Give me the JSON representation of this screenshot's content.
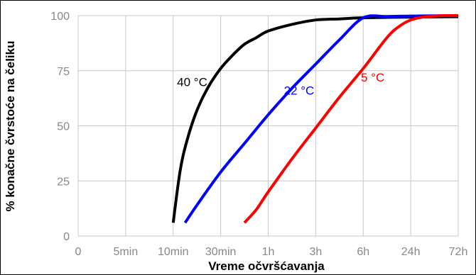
{
  "chart_data": {
    "type": "line",
    "title": "",
    "xlabel": "Vreme očvršćavanja",
    "ylabel": "% konačne čvrstoće na čeliku",
    "x_categories": [
      "0",
      "5min",
      "10min",
      "30min",
      "1h",
      "3h",
      "6h",
      "24h",
      "72h"
    ],
    "y_ticks": [
      0,
      25,
      50,
      75,
      100
    ],
    "ylim": [
      0,
      100
    ],
    "grid": true,
    "series": [
      {
        "name": "40 °C",
        "color": "#000000",
        "x": [
          2,
          2.15,
          2.3,
          2.5,
          2.75,
          3.0,
          3.25,
          3.5,
          3.75,
          4.0,
          4.5,
          5.0,
          5.5,
          6.0,
          7.0,
          8.0
        ],
        "y": [
          6,
          30,
          44,
          57,
          68,
          76,
          82,
          87,
          90,
          93,
          96,
          98,
          98.5,
          99,
          99.3,
          99.5
        ]
      },
      {
        "name": "22 °C",
        "color": "#0000ff",
        "x": [
          2.25,
          2.5,
          3.0,
          3.5,
          4.0,
          4.5,
          5.0,
          5.5,
          6.0,
          6.5,
          7.0,
          8.0
        ],
        "y": [
          6,
          14,
          29,
          42,
          55,
          67,
          78,
          89,
          99,
          99.6,
          99.8,
          100
        ]
      },
      {
        "name": "5 °C",
        "color": "#ff0000",
        "x": [
          3.5,
          3.75,
          4.0,
          4.5,
          5.0,
          5.5,
          6.0,
          6.5,
          6.75,
          7.0,
          7.25,
          7.5,
          7.75,
          8.0
        ],
        "y": [
          6,
          12,
          20,
          35,
          49,
          63,
          76,
          90,
          95,
          98,
          99.3,
          99.8,
          100,
          100
        ]
      }
    ],
    "annotations": [
      {
        "text": "40 °C",
        "color": "#000000",
        "x": 2.4,
        "y": 70
      },
      {
        "text": "22 °C",
        "color": "#0000ff",
        "x": 4.65,
        "y": 66
      },
      {
        "text": "5 °C",
        "color": "#ff0000",
        "x": 6.2,
        "y": 72
      }
    ]
  }
}
